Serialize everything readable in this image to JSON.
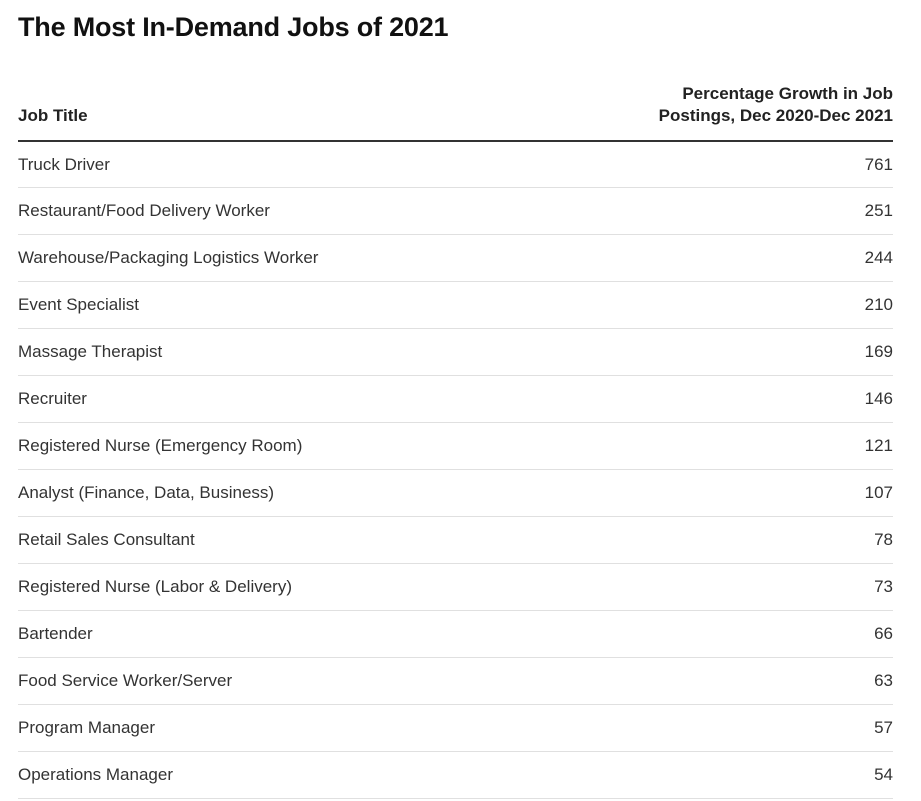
{
  "chart_data": {
    "type": "table",
    "title": "The Most In-Demand Jobs of 2021",
    "columns": [
      "Job Title",
      "Percentage Growth in Job Postings, Dec 2020-Dec 2021"
    ],
    "rows": [
      {
        "job": "Truck Driver",
        "growth": "761"
      },
      {
        "job": "Restaurant/Food Delivery Worker",
        "growth": "251"
      },
      {
        "job": "Warehouse/Packaging Logistics Worker",
        "growth": "244"
      },
      {
        "job": "Event Specialist",
        "growth": "210"
      },
      {
        "job": "Massage Therapist",
        "growth": "169"
      },
      {
        "job": "Recruiter",
        "growth": "146"
      },
      {
        "job": "Registered Nurse (Emergency Room)",
        "growth": "121"
      },
      {
        "job": "Analyst (Finance, Data, Business)",
        "growth": "107"
      },
      {
        "job": "Retail Sales Consultant",
        "growth": "78"
      },
      {
        "job": "Registered Nurse (Labor & Delivery)",
        "growth": "73"
      },
      {
        "job": "Bartender",
        "growth": "66"
      },
      {
        "job": "Food Service Worker/Server",
        "growth": "63"
      },
      {
        "job": "Program Manager",
        "growth": "57"
      },
      {
        "job": "Operations Manager",
        "growth": "54"
      }
    ]
  }
}
